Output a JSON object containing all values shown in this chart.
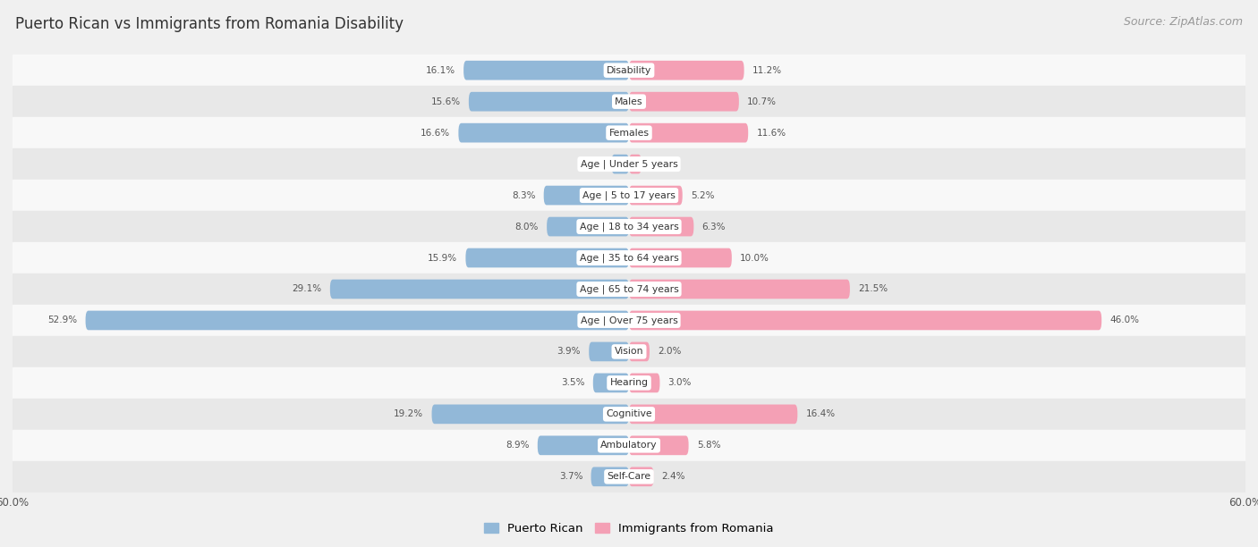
{
  "title": "Puerto Rican vs Immigrants from Romania Disability",
  "source": "Source: ZipAtlas.com",
  "categories": [
    "Disability",
    "Males",
    "Females",
    "Age | Under 5 years",
    "Age | 5 to 17 years",
    "Age | 18 to 34 years",
    "Age | 35 to 64 years",
    "Age | 65 to 74 years",
    "Age | Over 75 years",
    "Vision",
    "Hearing",
    "Cognitive",
    "Ambulatory",
    "Self-Care"
  ],
  "puerto_rican": [
    16.1,
    15.6,
    16.6,
    1.7,
    8.3,
    8.0,
    15.9,
    29.1,
    52.9,
    3.9,
    3.5,
    19.2,
    8.9,
    3.7
  ],
  "romania": [
    11.2,
    10.7,
    11.6,
    1.2,
    5.2,
    6.3,
    10.0,
    21.5,
    46.0,
    2.0,
    3.0,
    16.4,
    5.8,
    2.4
  ],
  "xlim": 60.0,
  "bar_color_blue": "#92b8d8",
  "bar_color_pink": "#f4a0b5",
  "bg_color": "#f0f0f0",
  "row_color_light": "#f8f8f8",
  "row_color_dark": "#e8e8e8",
  "title_fontsize": 12,
  "source_fontsize": 9,
  "bar_height": 0.62,
  "legend_blue": "Puerto Rican",
  "legend_pink": "Immigrants from Romania",
  "value_color": "#555555",
  "label_bg": "#ffffff",
  "label_text_color": "#333333"
}
